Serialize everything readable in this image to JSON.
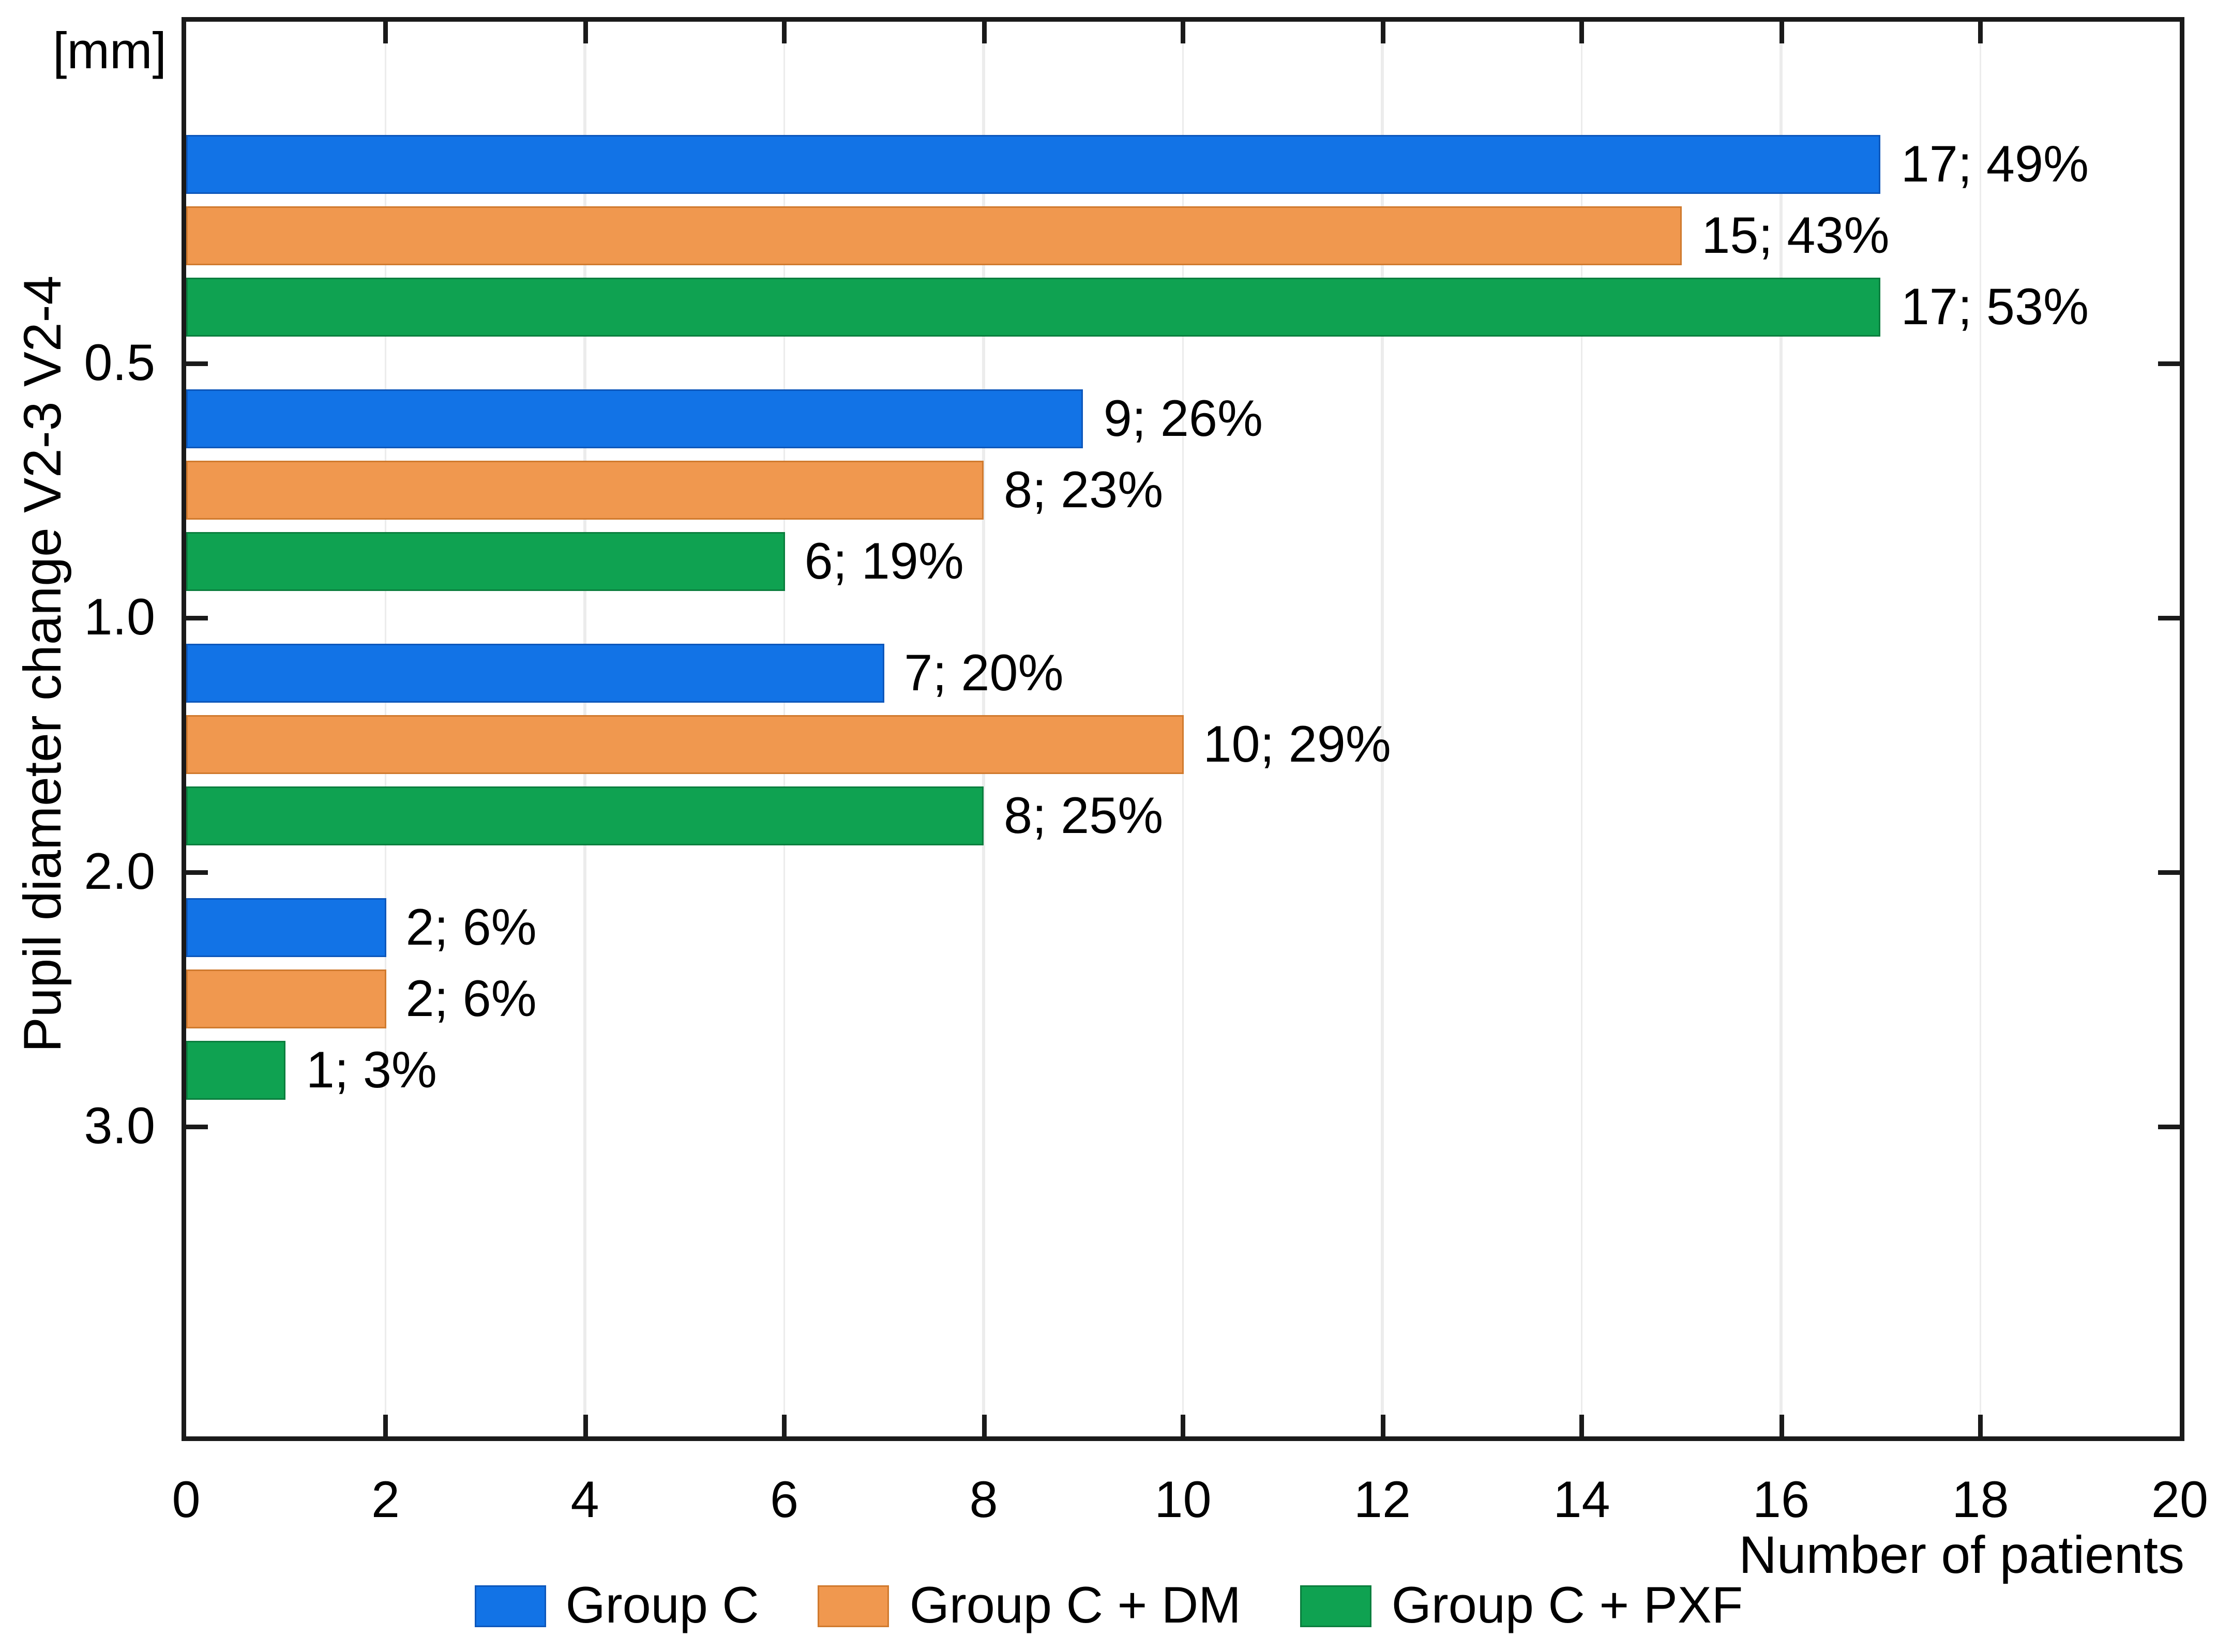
{
  "chart_data": {
    "type": "bar",
    "orientation": "horizontal",
    "title": "",
    "unit_label": "[mm]",
    "ylabel": "Pupil diameter change V2-3 V2-4",
    "xlabel": "Number of patients",
    "categories": [
      "0.5",
      "1.0",
      "2.0",
      "3.0"
    ],
    "x_ticks": [
      0,
      2,
      4,
      6,
      8,
      10,
      12,
      14,
      16,
      18,
      20
    ],
    "xlim": [
      0,
      20
    ],
    "grid": {
      "vertical_every": 2,
      "color": "#ececec"
    },
    "axis_color": "#1a1a1a",
    "legend_position": "bottom-center",
    "series": [
      {
        "name": "Group C",
        "color": "#1273E6",
        "border_color": "#0D57BB",
        "values": [
          17,
          9,
          7,
          2
        ],
        "percents": [
          49,
          26,
          20,
          6
        ],
        "bar_labels": [
          "17; 49%",
          "9; 26%",
          "7; 20%",
          "2; 6%"
        ]
      },
      {
        "name": "Group C + DM",
        "color": "#F0984F",
        "border_color": "#D07A2E",
        "values": [
          15,
          8,
          10,
          2
        ],
        "percents": [
          43,
          23,
          29,
          6
        ],
        "bar_labels": [
          "15; 43%",
          "8; 23%",
          "10; 29%",
          "2; 6%"
        ]
      },
      {
        "name": "Group C + PXF",
        "color": "#0FA251",
        "border_color": "#0B7E3E",
        "values": [
          17,
          6,
          8,
          1
        ],
        "percents": [
          53,
          19,
          25,
          3
        ],
        "bar_labels": [
          "17; 53%",
          "6; 19%",
          "8; 25%",
          "1; 3%"
        ]
      }
    ]
  }
}
